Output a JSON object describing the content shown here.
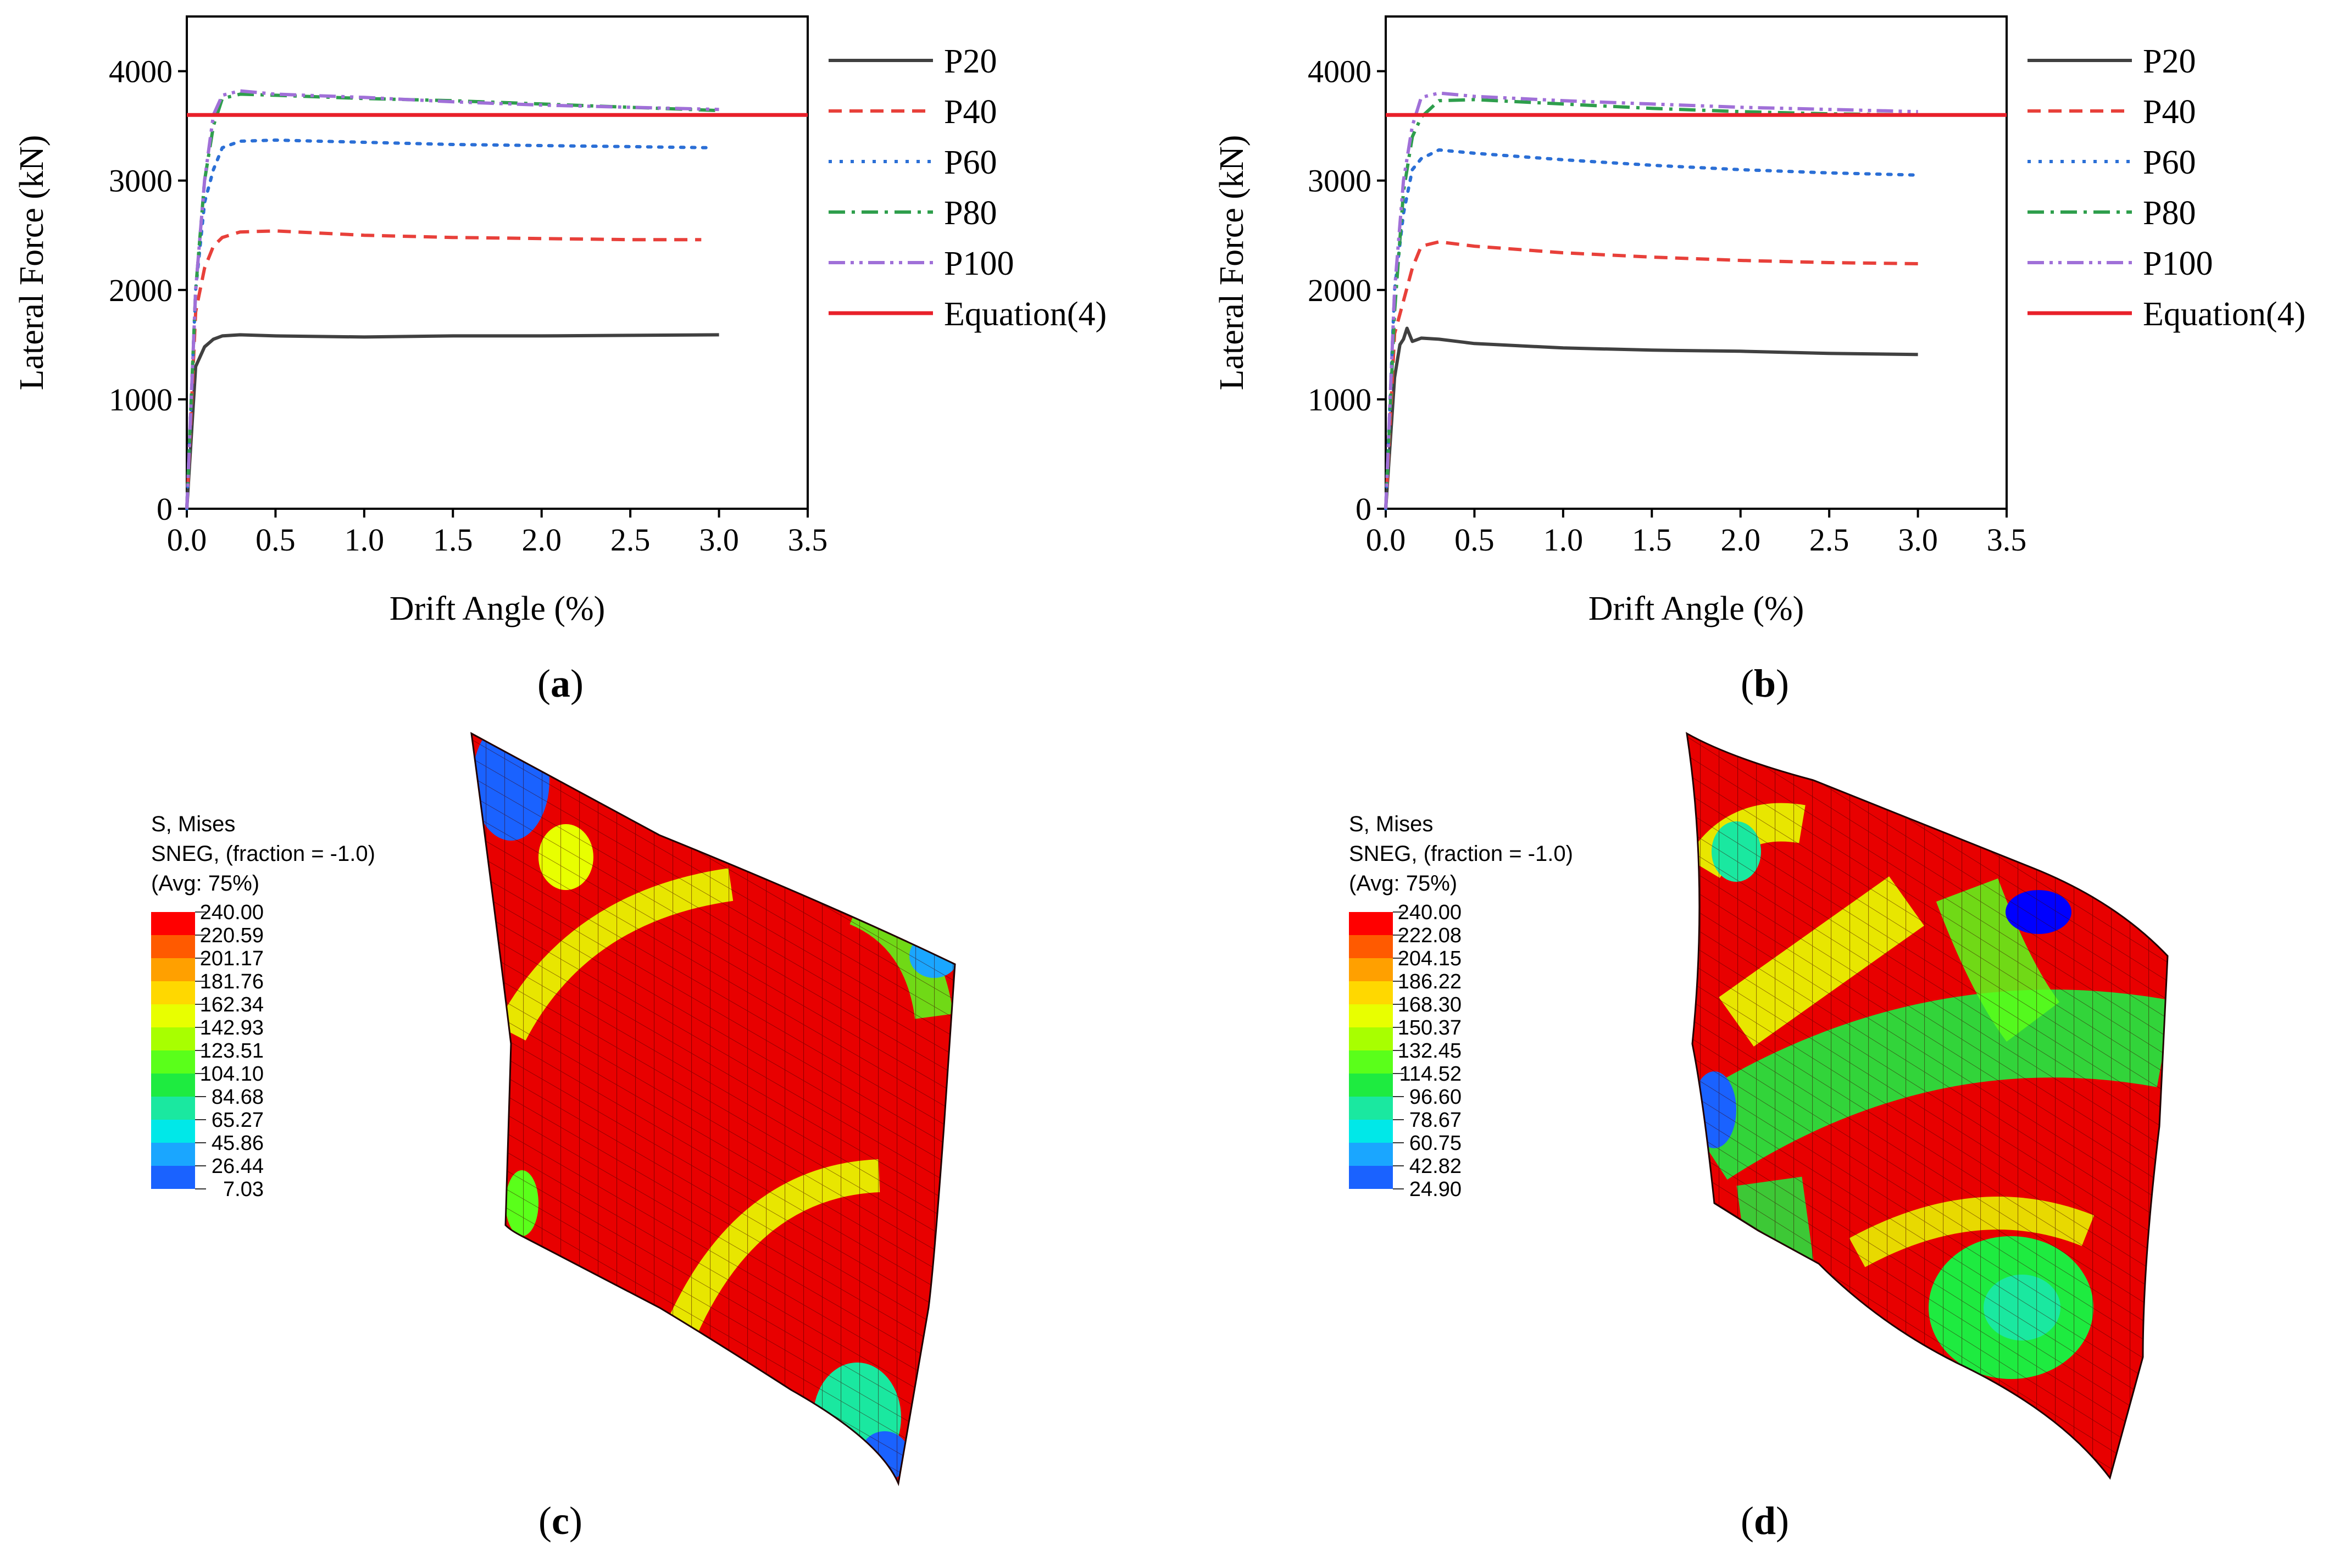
{
  "colors": {
    "P20": "#404040",
    "P40": "#e8403a",
    "P60": "#2b6fd6",
    "P80": "#2e9e4c",
    "P100": "#a070d8",
    "Equation(4)": "#e8202a",
    "axis": "#000000"
  },
  "chart_data": [
    {
      "id": "a",
      "type": "line",
      "caption": "(a)",
      "caption_letter": "a",
      "xlabel": "Drift Angle (%)",
      "ylabel": "Lateral Force (kN)",
      "xlim": [
        0,
        3.5
      ],
      "ylim": [
        0,
        4500
      ],
      "xticks": [
        "0.0",
        "0.5",
        "1.0",
        "1.5",
        "2.0",
        "2.5",
        "3.0",
        "3.5"
      ],
      "yticks": [
        "0",
        "1000",
        "2000",
        "3000",
        "4000"
      ],
      "legend": [
        "P20",
        "P40",
        "P60",
        "P80",
        "P100",
        "Equation(4)"
      ],
      "legend_position": "outside-right",
      "series": [
        {
          "name": "P20",
          "style": "solid",
          "x": [
            0,
            0.05,
            0.1,
            0.15,
            0.2,
            0.3,
            0.5,
            1.0,
            1.5,
            2.0,
            2.5,
            3.0
          ],
          "y": [
            0,
            1300,
            1480,
            1550,
            1580,
            1590,
            1580,
            1570,
            1580,
            1580,
            1585,
            1590
          ]
        },
        {
          "name": "P40",
          "style": "dashed",
          "x": [
            0,
            0.05,
            0.1,
            0.15,
            0.2,
            0.3,
            0.5,
            1.0,
            1.5,
            2.0,
            2.5,
            2.9
          ],
          "y": [
            0,
            1800,
            2200,
            2400,
            2480,
            2530,
            2540,
            2500,
            2480,
            2470,
            2460,
            2460
          ]
        },
        {
          "name": "P60",
          "style": "dotted",
          "x": [
            0,
            0.05,
            0.1,
            0.15,
            0.2,
            0.3,
            0.5,
            1.0,
            1.5,
            2.0,
            2.5,
            2.95
          ],
          "y": [
            0,
            2000,
            2800,
            3100,
            3300,
            3360,
            3370,
            3350,
            3330,
            3320,
            3310,
            3300
          ]
        },
        {
          "name": "P80",
          "style": "dashdot",
          "x": [
            0,
            0.05,
            0.1,
            0.15,
            0.2,
            0.3,
            0.5,
            1.0,
            1.5,
            2.0,
            2.5,
            3.0
          ],
          "y": [
            0,
            2000,
            3000,
            3500,
            3750,
            3790,
            3780,
            3750,
            3730,
            3700,
            3670,
            3640
          ]
        },
        {
          "name": "P100",
          "style": "dashdotdot",
          "x": [
            0,
            0.05,
            0.1,
            0.15,
            0.2,
            0.3,
            0.5,
            1.0,
            1.5,
            2.0,
            2.5,
            3.0
          ],
          "y": [
            0,
            2000,
            3000,
            3600,
            3780,
            3820,
            3790,
            3760,
            3720,
            3690,
            3670,
            3650
          ]
        },
        {
          "name": "Equation(4)",
          "style": "solid-thick",
          "x": [
            0,
            3.5
          ],
          "y": [
            3600,
            3600
          ]
        }
      ]
    },
    {
      "id": "b",
      "type": "line",
      "caption": "(b)",
      "caption_letter": "b",
      "xlabel": "Drift Angle (%)",
      "ylabel": "Lateral Force (kN)",
      "xlim": [
        0,
        3.5
      ],
      "ylim": [
        0,
        4500
      ],
      "xticks": [
        "0.0",
        "0.5",
        "1.0",
        "1.5",
        "2.0",
        "2.5",
        "3.0",
        "3.5"
      ],
      "yticks": [
        "0",
        "1000",
        "2000",
        "3000",
        "4000"
      ],
      "legend": [
        "P20",
        "P40",
        "P60",
        "P80",
        "P100",
        "Equation(4)"
      ],
      "legend_position": "outside-right",
      "series": [
        {
          "name": "P20",
          "style": "solid",
          "x": [
            0,
            0.05,
            0.08,
            0.1,
            0.12,
            0.15,
            0.2,
            0.3,
            0.5,
            1.0,
            1.5,
            2.0,
            2.5,
            3.0
          ],
          "y": [
            0,
            1200,
            1500,
            1550,
            1650,
            1530,
            1560,
            1550,
            1510,
            1470,
            1450,
            1440,
            1420,
            1410
          ]
        },
        {
          "name": "P40",
          "style": "dashed",
          "x": [
            0,
            0.05,
            0.1,
            0.15,
            0.2,
            0.3,
            0.5,
            1.0,
            1.5,
            2.0,
            2.5,
            3.0
          ],
          "y": [
            0,
            1600,
            1900,
            2200,
            2400,
            2440,
            2400,
            2340,
            2300,
            2270,
            2250,
            2240
          ]
        },
        {
          "name": "P60",
          "style": "dotted",
          "x": [
            0,
            0.05,
            0.1,
            0.15,
            0.2,
            0.3,
            0.5,
            1.0,
            1.5,
            2.0,
            2.5,
            3.0
          ],
          "y": [
            0,
            2000,
            2700,
            3100,
            3200,
            3280,
            3250,
            3190,
            3140,
            3100,
            3070,
            3050
          ]
        },
        {
          "name": "P80",
          "style": "dashdot",
          "x": [
            0,
            0.05,
            0.1,
            0.15,
            0.2,
            0.3,
            0.5,
            1.0,
            1.5,
            2.0,
            2.5,
            3.0
          ],
          "y": [
            0,
            1800,
            2900,
            3400,
            3580,
            3730,
            3740,
            3700,
            3660,
            3630,
            3610,
            3600
          ]
        },
        {
          "name": "P100",
          "style": "dashdotdot",
          "x": [
            0,
            0.05,
            0.1,
            0.15,
            0.2,
            0.3,
            0.5,
            1.0,
            1.5,
            2.0,
            2.5,
            3.0
          ],
          "y": [
            0,
            2000,
            3000,
            3500,
            3760,
            3800,
            3770,
            3730,
            3700,
            3670,
            3650,
            3630
          ]
        },
        {
          "name": "Equation(4)",
          "style": "solid-thick",
          "x": [
            0,
            3.5
          ],
          "y": [
            3600,
            3600
          ]
        }
      ]
    }
  ],
  "contours": [
    {
      "id": "c",
      "caption": "(c)",
      "caption_letter": "c",
      "legend_title": [
        "S, Mises",
        "SNEG, (fraction = -1.0)",
        "(Avg: 75%)"
      ],
      "levels": [
        "240.00",
        "220.59",
        "201.17",
        "181.76",
        "162.34",
        "142.93",
        "123.51",
        "104.10",
        "84.68",
        "65.27",
        "45.86",
        "26.44",
        "7.03"
      ]
    },
    {
      "id": "d",
      "caption": "(d)",
      "caption_letter": "d",
      "legend_title": [
        "S, Mises",
        "SNEG, (fraction = -1.0)",
        "(Avg: 75%)"
      ],
      "levels": [
        "240.00",
        "222.08",
        "204.15",
        "186.22",
        "168.30",
        "150.37",
        "132.45",
        "114.52",
        "96.60",
        "78.67",
        "60.75",
        "42.82",
        "24.90"
      ]
    }
  ],
  "contour_colors": [
    "#ff0000",
    "#ff5a00",
    "#ffa000",
    "#ffd800",
    "#e8ff00",
    "#a8ff00",
    "#5aff1a",
    "#1eeb40",
    "#1ae8a0",
    "#00e8e8",
    "#1aa6ff",
    "#1a62ff",
    "#0000ff"
  ]
}
